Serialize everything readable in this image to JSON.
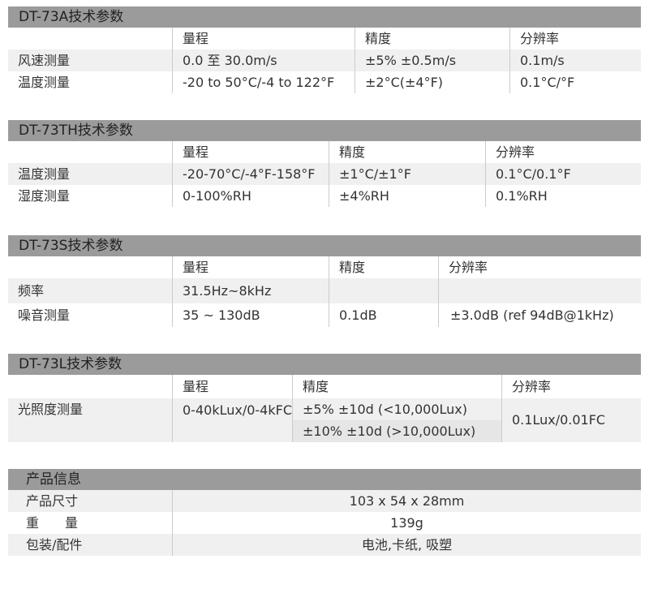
{
  "tables": [
    {
      "title": "DT-73A技术参数",
      "headers": [
        "量程",
        "精度",
        "分辨率"
      ],
      "rows": [
        {
          "label": "风速测量",
          "range": "0.0 至 30.0m/s",
          "accuracy": "±5% ±0.5m/s",
          "resolution": "0.1m/s"
        },
        {
          "label": "温度测量",
          "range": "-20 to 50°C/-4 to 122°F",
          "accuracy": "±2°C(±4°F)",
          "resolution": "0.1°C/°F"
        }
      ]
    },
    {
      "title": "DT-73TH技术参数",
      "headers": [
        "量程",
        "精度",
        "分辨率"
      ],
      "rows": [
        {
          "label": "温度测量",
          "range": "-20-70°C/-4°F-158°F",
          "accuracy": "±1°C/±1°F",
          "resolution": "0.1°C/0.1°F"
        },
        {
          "label": "湿度测量",
          "range": "0-100%RH",
          "accuracy": "±4%RH",
          "resolution": "0.1%RH"
        }
      ]
    },
    {
      "title": "DT-73S技术参数",
      "headers": [
        "量程",
        "精度",
        "分辨率"
      ],
      "rows": [
        {
          "label": "频率",
          "range": "31.5Hz~8kHz",
          "accuracy": "",
          "resolution": ""
        },
        {
          "label": "噪音测量",
          "range": "35 ~ 130dB",
          "accuracy": "0.1dB",
          "resolution": "±3.0dB (ref 94dB@1kHz)"
        }
      ]
    },
    {
      "title": "DT-73L技术参数",
      "headers": [
        "量程",
        "精度",
        "分辨率"
      ],
      "rows": [
        {
          "label": "光照度测量",
          "range": "0-40kLux/0-4kFC",
          "accuracy": [
            "±5% ±10d (<10,000Lux)",
            "±10% ±10d (>10,000Lux)"
          ],
          "resolution": "0.1Lux/0.01FC"
        }
      ]
    }
  ],
  "product_info": {
    "title": "产品信息",
    "rows": [
      {
        "label": "产品尺寸",
        "value": "103 x 54 x 28mm"
      },
      {
        "label": "重　　量",
        "value": "139g"
      },
      {
        "label": "包装/配件",
        "value": "电池,卡纸, 吸塑"
      }
    ]
  }
}
